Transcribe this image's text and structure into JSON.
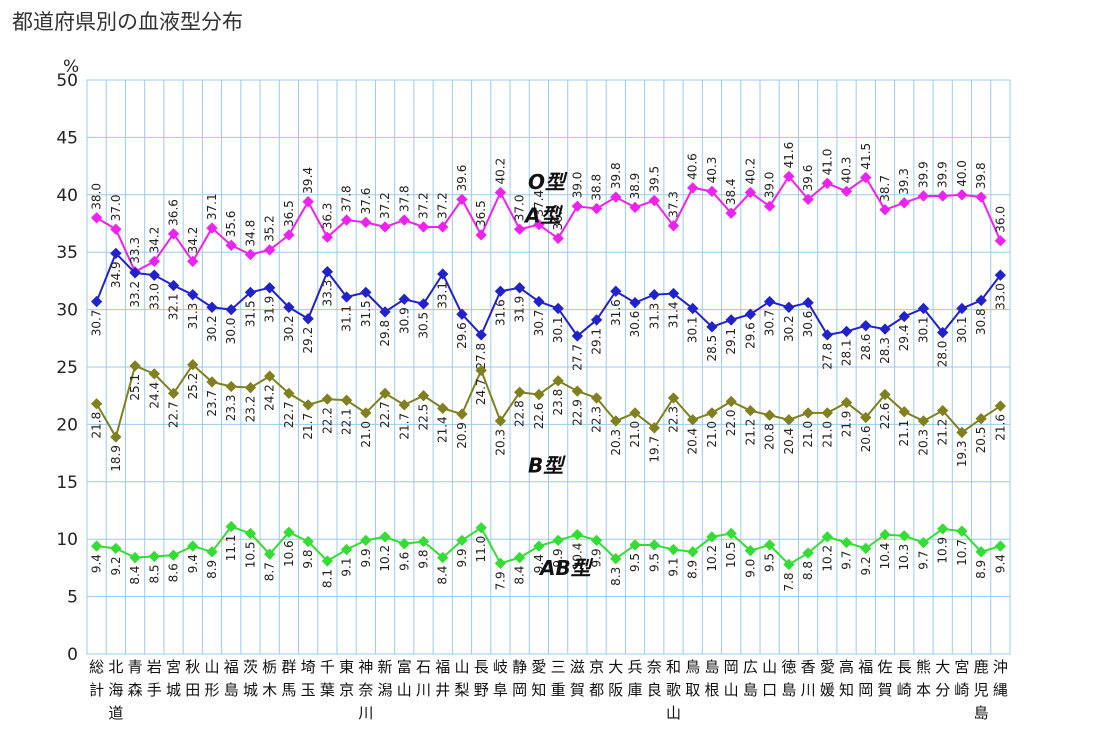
{
  "title": "都道府県別の血液型分布",
  "chart_data": {
    "type": "line",
    "title": "都道府県別の血液型分布",
    "ylabel": "%",
    "ylim": [
      0,
      50
    ],
    "yticks": [
      0,
      5,
      10,
      15,
      20,
      25,
      30,
      35,
      40,
      45,
      50
    ],
    "grid": true,
    "categories": [
      "総計",
      "北海道",
      "青森",
      "岩手",
      "宮城",
      "秋田",
      "山形",
      "福島",
      "茨城",
      "栃木",
      "群馬",
      "埼玉",
      "千葉",
      "東京",
      "神奈川",
      "新潟",
      "富山",
      "石川",
      "福井",
      "山梨",
      "長野",
      "岐阜",
      "静岡",
      "愛知",
      "三重",
      "滋賀",
      "京都",
      "大阪",
      "兵庫",
      "奈良",
      "和歌山",
      "鳥取",
      "島根",
      "岡山",
      "広島",
      "山口",
      "徳島",
      "香川",
      "愛媛",
      "高知",
      "福岡",
      "佐賀",
      "長崎",
      "熊本",
      "大分",
      "宮崎",
      "鹿児島",
      "沖縄"
    ],
    "series": [
      {
        "name": "A型",
        "color": "#ee22ee",
        "values": [
          38.0,
          37.0,
          33.3,
          34.2,
          36.6,
          34.2,
          37.1,
          35.6,
          34.8,
          35.2,
          36.5,
          39.4,
          36.3,
          37.8,
          37.6,
          37.2,
          37.8,
          37.2,
          37.2,
          39.6,
          36.5,
          40.2,
          37.0,
          37.4,
          36.2,
          39.0,
          38.8,
          39.8,
          38.9,
          39.5,
          37.3,
          40.6,
          40.3,
          38.4,
          40.2,
          39.0,
          41.6,
          39.6,
          41.0,
          40.3,
          41.5,
          38.7,
          39.3,
          39.9,
          39.9,
          40.0,
          39.8,
          36.0
        ]
      },
      {
        "name": "O型",
        "color": "#2222cc",
        "values": [
          30.7,
          34.9,
          33.2,
          33.0,
          32.1,
          31.3,
          30.2,
          30.0,
          31.5,
          31.9,
          30.2,
          29.2,
          33.3,
          31.1,
          31.5,
          29.8,
          30.9,
          30.5,
          33.1,
          29.6,
          27.8,
          31.6,
          31.9,
          30.7,
          30.1,
          27.7,
          29.1,
          31.6,
          30.6,
          31.3,
          31.4,
          30.1,
          28.5,
          29.1,
          29.6,
          30.7,
          30.2,
          30.6,
          27.8,
          28.1,
          28.6,
          28.3,
          29.4,
          30.1,
          28.0,
          30.1,
          30.8,
          33.0
        ]
      },
      {
        "name": "B型",
        "color": "#808020",
        "values": [
          21.8,
          18.9,
          25.1,
          24.4,
          22.7,
          25.2,
          23.7,
          23.3,
          23.2,
          24.2,
          22.7,
          21.7,
          22.2,
          22.1,
          21.0,
          22.7,
          21.7,
          22.5,
          21.4,
          20.9,
          24.7,
          20.3,
          22.8,
          22.6,
          23.8,
          22.9,
          22.3,
          20.3,
          21.0,
          19.7,
          22.3,
          20.4,
          21.0,
          22.0,
          21.2,
          20.8,
          20.4,
          21.0,
          21.0,
          21.9,
          20.6,
          22.6,
          21.1,
          20.3,
          21.2,
          19.3,
          20.5,
          21.6
        ]
      },
      {
        "name": "AB型",
        "color": "#33dd33",
        "values": [
          9.4,
          9.2,
          8.4,
          8.5,
          8.6,
          9.4,
          8.9,
          11.1,
          10.5,
          8.7,
          10.6,
          9.8,
          8.1,
          9.1,
          9.9,
          10.2,
          9.6,
          9.8,
          8.4,
          9.9,
          11.0,
          7.9,
          8.4,
          9.4,
          9.9,
          10.4,
          9.9,
          8.3,
          9.5,
          9.5,
          9.1,
          8.9,
          10.2,
          10.5,
          9.0,
          9.5,
          7.8,
          8.8,
          10.2,
          9.7,
          9.2,
          10.4,
          10.3,
          9.7,
          10.9,
          10.7,
          8.9,
          9.4
        ]
      }
    ]
  }
}
